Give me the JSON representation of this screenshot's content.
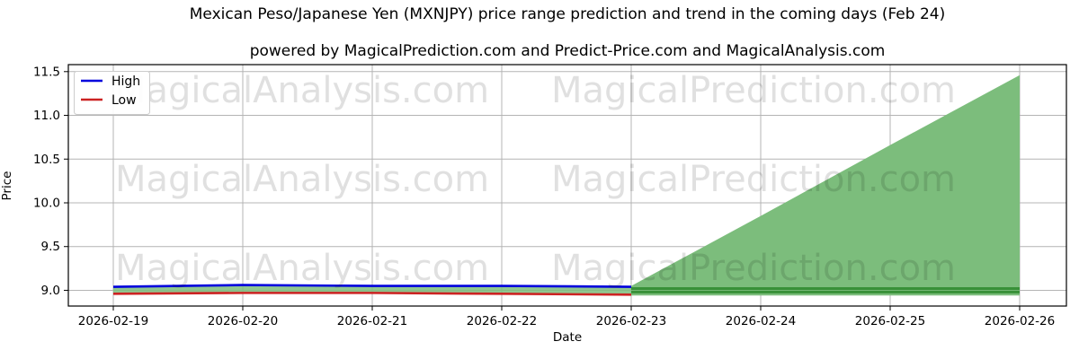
{
  "chart": {
    "title": "Mexican Peso/Japanese Yen (MXNJPY) price range prediction and trend in the coming days (Feb 24)",
    "subtitle": "powered by MagicalPrediction.com and Predict-Price.com and MagicalAnalysis.com",
    "xlabel": "Date",
    "ylabel": "Price"
  },
  "chart_data": {
    "type": "line",
    "title": "Mexican Peso/Japanese Yen (MXNJPY) price range prediction and trend in the coming days (Feb 24)",
    "subtitle": "powered by MagicalPrediction.com and Predict-Price.com and MagicalAnalysis.com",
    "xlabel": "Date",
    "ylabel": "Price",
    "grid": true,
    "categories": [
      "2026-02-19",
      "2026-02-20",
      "2026-02-21",
      "2026-02-22",
      "2026-02-23",
      "2026-02-24",
      "2026-02-25",
      "2026-02-26"
    ],
    "yticks": [
      9.0,
      9.5,
      10.0,
      10.5,
      11.0,
      11.5
    ],
    "ytick_labels": [
      "9.0",
      "9.5",
      "10.0",
      "10.5",
      "11.0",
      "11.5"
    ],
    "ylim": [
      8.82,
      11.58
    ],
    "legend": {
      "position": "upper-left",
      "items": [
        {
          "label": "High",
          "color": "#0000dd"
        },
        {
          "label": "Low",
          "color": "#cc2222"
        }
      ]
    },
    "series": [
      {
        "name": "High",
        "color": "#0000dd",
        "x_start": 0,
        "values": [
          9.04,
          9.06,
          9.05,
          9.05,
          9.04
        ]
      },
      {
        "name": "Low",
        "color": "#cc2222",
        "x_start": 0,
        "values": [
          8.96,
          8.97,
          8.97,
          8.96,
          8.95
        ]
      }
    ],
    "bands": [
      {
        "name": "history-range",
        "color": "#7cbd7c",
        "opacity": 0.85,
        "x_start": 0,
        "top": [
          9.04,
          9.06,
          9.05,
          9.05,
          9.04
        ],
        "bottom": [
          8.96,
          8.97,
          8.97,
          8.96,
          8.95
        ]
      },
      {
        "name": "prediction-range",
        "color": "#7cbd7c",
        "opacity": 1.0,
        "x_start": 4,
        "top": [
          9.05,
          9.85,
          10.66,
          11.46
        ],
        "bottom": [
          8.94,
          8.94,
          8.94,
          8.94
        ]
      }
    ],
    "trend_lines": [
      {
        "name": "predicted-high-trend",
        "color": "#389038",
        "x_start": 4,
        "values": [
          9.02,
          9.02,
          9.02,
          9.02
        ]
      },
      {
        "name": "predicted-low-trend",
        "color": "#389038",
        "x_start": 4,
        "values": [
          8.98,
          8.98,
          8.98,
          8.98
        ]
      }
    ],
    "watermarks": {
      "left_text": "MagicalAnalysis.com",
      "right_text": "MagicalPrediction.com",
      "color": "#000000",
      "opacity": 0.12
    }
  }
}
